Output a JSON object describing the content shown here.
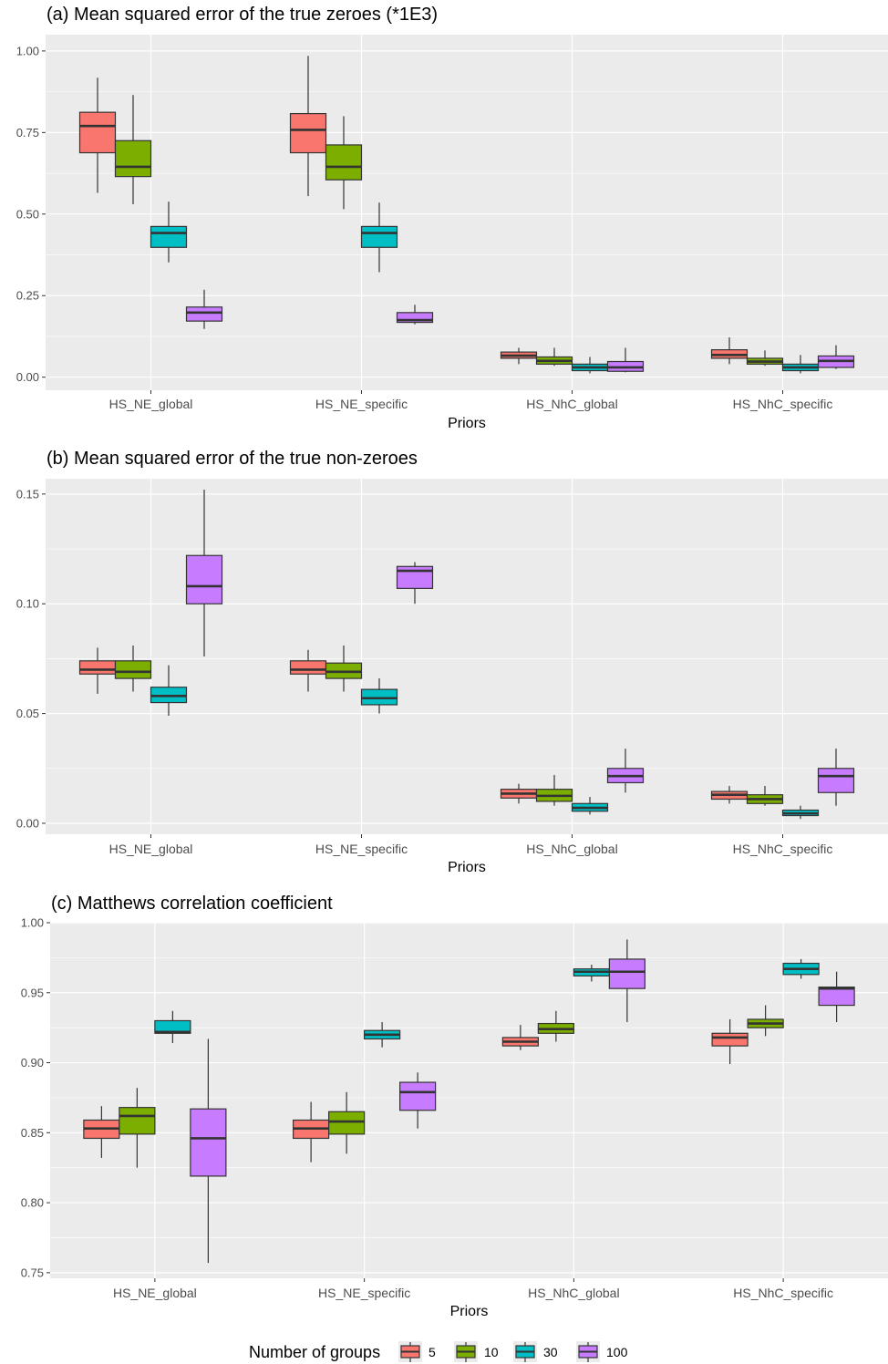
{
  "chart_data": [
    {
      "type": "boxplot",
      "title": "(a) Mean squared error of the true zeroes  (*1E3)",
      "xlabel": "Priors",
      "ylabel": "",
      "categories": [
        "HS_NE_global",
        "HS_NE_specific",
        "HS_NhC_global",
        "HS_NhC_specific"
      ],
      "yticks": [
        "0.00",
        "0.25",
        "0.50",
        "0.75",
        "1.00"
      ],
      "ylim": [
        -0.04,
        1.05
      ],
      "grid": true,
      "series": [
        {
          "name": "5",
          "boxes": [
            {
              "min": 0.565,
              "q1": 0.688,
              "median": 0.77,
              "q3": 0.812,
              "max": 0.918
            },
            {
              "min": 0.555,
              "q1": 0.688,
              "median": 0.758,
              "q3": 0.808,
              "max": 0.985
            },
            {
              "min": 0.04,
              "q1": 0.058,
              "median": 0.066,
              "q3": 0.077,
              "max": 0.09
            },
            {
              "min": 0.04,
              "q1": 0.058,
              "median": 0.068,
              "q3": 0.084,
              "max": 0.122
            }
          ]
        },
        {
          "name": "10",
          "boxes": [
            {
              "min": 0.53,
              "q1": 0.615,
              "median": 0.645,
              "q3": 0.725,
              "max": 0.865
            },
            {
              "min": 0.515,
              "q1": 0.605,
              "median": 0.645,
              "q3": 0.712,
              "max": 0.8
            },
            {
              "min": 0.035,
              "q1": 0.04,
              "median": 0.05,
              "q3": 0.062,
              "max": 0.09
            },
            {
              "min": 0.035,
              "q1": 0.04,
              "median": 0.048,
              "q3": 0.058,
              "max": 0.082
            }
          ]
        },
        {
          "name": "30",
          "boxes": [
            {
              "min": 0.352,
              "q1": 0.398,
              "median": 0.442,
              "q3": 0.462,
              "max": 0.538
            },
            {
              "min": 0.322,
              "q1": 0.398,
              "median": 0.442,
              "q3": 0.462,
              "max": 0.535
            },
            {
              "min": 0.012,
              "q1": 0.02,
              "median": 0.03,
              "q3": 0.04,
              "max": 0.062
            },
            {
              "min": 0.012,
              "q1": 0.02,
              "median": 0.03,
              "q3": 0.04,
              "max": 0.068
            }
          ]
        },
        {
          "name": "100",
          "boxes": [
            {
              "min": 0.148,
              "q1": 0.172,
              "median": 0.198,
              "q3": 0.215,
              "max": 0.268
            },
            {
              "min": 0.162,
              "q1": 0.168,
              "median": 0.175,
              "q3": 0.198,
              "max": 0.222
            },
            {
              "min": 0.015,
              "q1": 0.018,
              "median": 0.03,
              "q3": 0.048,
              "max": 0.09
            },
            {
              "min": 0.025,
              "q1": 0.03,
              "median": 0.05,
              "q3": 0.065,
              "max": 0.098
            }
          ]
        }
      ]
    },
    {
      "type": "boxplot",
      "title": "(b) Mean squared error of the true non-zeroes",
      "xlabel": "Priors",
      "ylabel": "",
      "categories": [
        "HS_NE_global",
        "HS_NE_specific",
        "HS_NhC_global",
        "HS_NhC_specific"
      ],
      "yticks": [
        "0.00",
        "0.05",
        "0.10",
        "0.15"
      ],
      "ylim": [
        -0.005,
        0.157
      ],
      "grid": true,
      "series": [
        {
          "name": "5",
          "boxes": [
            {
              "min": 0.059,
              "q1": 0.068,
              "median": 0.07,
              "q3": 0.074,
              "max": 0.08
            },
            {
              "min": 0.06,
              "q1": 0.068,
              "median": 0.07,
              "q3": 0.074,
              "max": 0.079
            },
            {
              "min": 0.009,
              "q1": 0.0115,
              "median": 0.0135,
              "q3": 0.0155,
              "max": 0.018
            },
            {
              "min": 0.009,
              "q1": 0.011,
              "median": 0.013,
              "q3": 0.0145,
              "max": 0.017
            }
          ]
        },
        {
          "name": "10",
          "boxes": [
            {
              "min": 0.06,
              "q1": 0.066,
              "median": 0.069,
              "q3": 0.074,
              "max": 0.081
            },
            {
              "min": 0.06,
              "q1": 0.066,
              "median": 0.069,
              "q3": 0.073,
              "max": 0.081
            },
            {
              "min": 0.008,
              "q1": 0.01,
              "median": 0.0125,
              "q3": 0.0155,
              "max": 0.022
            },
            {
              "min": 0.008,
              "q1": 0.009,
              "median": 0.011,
              "q3": 0.013,
              "max": 0.017
            }
          ]
        },
        {
          "name": "30",
          "boxes": [
            {
              "min": 0.049,
              "q1": 0.055,
              "median": 0.058,
              "q3": 0.062,
              "max": 0.072
            },
            {
              "min": 0.05,
              "q1": 0.054,
              "median": 0.057,
              "q3": 0.061,
              "max": 0.066
            },
            {
              "min": 0.004,
              "q1": 0.0055,
              "median": 0.007,
              "q3": 0.009,
              "max": 0.012
            },
            {
              "min": 0.002,
              "q1": 0.0035,
              "median": 0.0045,
              "q3": 0.006,
              "max": 0.008
            }
          ]
        },
        {
          "name": "100",
          "boxes": [
            {
              "min": 0.076,
              "q1": 0.1,
              "median": 0.108,
              "q3": 0.122,
              "max": 0.152
            },
            {
              "min": 0.1,
              "q1": 0.107,
              "median": 0.115,
              "q3": 0.117,
              "max": 0.119
            },
            {
              "min": 0.014,
              "q1": 0.0185,
              "median": 0.0215,
              "q3": 0.025,
              "max": 0.034
            },
            {
              "min": 0.008,
              "q1": 0.014,
              "median": 0.0215,
              "q3": 0.025,
              "max": 0.034
            }
          ]
        }
      ]
    },
    {
      "type": "boxplot",
      "title": "(c) Matthews correlation coefficient",
      "xlabel": "Priors",
      "ylabel": "",
      "categories": [
        "HS_NE_global",
        "HS_NE_specific",
        "HS_NhC_global",
        "HS_NhC_specific"
      ],
      "yticks": [
        "0.75",
        "0.80",
        "0.85",
        "0.90",
        "0.95",
        "1.00"
      ],
      "ylim": [
        0.746,
        1.0
      ],
      "grid": true,
      "series": [
        {
          "name": "5",
          "boxes": [
            {
              "min": 0.832,
              "q1": 0.846,
              "median": 0.853,
              "q3": 0.859,
              "max": 0.869
            },
            {
              "min": 0.829,
              "q1": 0.846,
              "median": 0.853,
              "q3": 0.859,
              "max": 0.872
            },
            {
              "min": 0.909,
              "q1": 0.912,
              "median": 0.915,
              "q3": 0.918,
              "max": 0.927
            },
            {
              "min": 0.899,
              "q1": 0.912,
              "median": 0.918,
              "q3": 0.921,
              "max": 0.931
            }
          ]
        },
        {
          "name": "10",
          "boxes": [
            {
              "min": 0.825,
              "q1": 0.849,
              "median": 0.862,
              "q3": 0.868,
              "max": 0.882
            },
            {
              "min": 0.835,
              "q1": 0.849,
              "median": 0.858,
              "q3": 0.865,
              "max": 0.879
            },
            {
              "min": 0.915,
              "q1": 0.921,
              "median": 0.924,
              "q3": 0.928,
              "max": 0.937
            },
            {
              "min": 0.919,
              "q1": 0.925,
              "median": 0.928,
              "q3": 0.931,
              "max": 0.941
            }
          ]
        },
        {
          "name": "30",
          "boxes": [
            {
              "min": 0.914,
              "q1": 0.921,
              "median": 0.922,
              "q3": 0.93,
              "max": 0.937
            },
            {
              "min": 0.911,
              "q1": 0.917,
              "median": 0.92,
              "q3": 0.923,
              "max": 0.929
            },
            {
              "min": 0.958,
              "q1": 0.962,
              "median": 0.965,
              "q3": 0.967,
              "max": 0.97
            },
            {
              "min": 0.96,
              "q1": 0.963,
              "median": 0.967,
              "q3": 0.971,
              "max": 0.974
            }
          ]
        },
        {
          "name": "100",
          "boxes": [
            {
              "min": 0.757,
              "q1": 0.819,
              "median": 0.846,
              "q3": 0.867,
              "max": 0.917
            },
            {
              "min": 0.853,
              "q1": 0.866,
              "median": 0.879,
              "q3": 0.886,
              "max": 0.893
            },
            {
              "min": 0.929,
              "q1": 0.953,
              "median": 0.965,
              "q3": 0.974,
              "max": 0.988
            },
            {
              "min": 0.929,
              "q1": 0.941,
              "median": 0.953,
              "q3": 0.954,
              "max": 0.965
            }
          ]
        }
      ]
    }
  ],
  "legend": {
    "title": "Number of groups",
    "position": "bottom",
    "entries": [
      "5",
      "10",
      "30",
      "100"
    ]
  },
  "colors": {
    "5": "#F8766D",
    "10": "#7CAE00",
    "30": "#00BFC4",
    "100": "#C77CFF",
    "panel_bg": "#EBEBEB",
    "grid": "#FFFFFF",
    "box_line": "#333333"
  }
}
